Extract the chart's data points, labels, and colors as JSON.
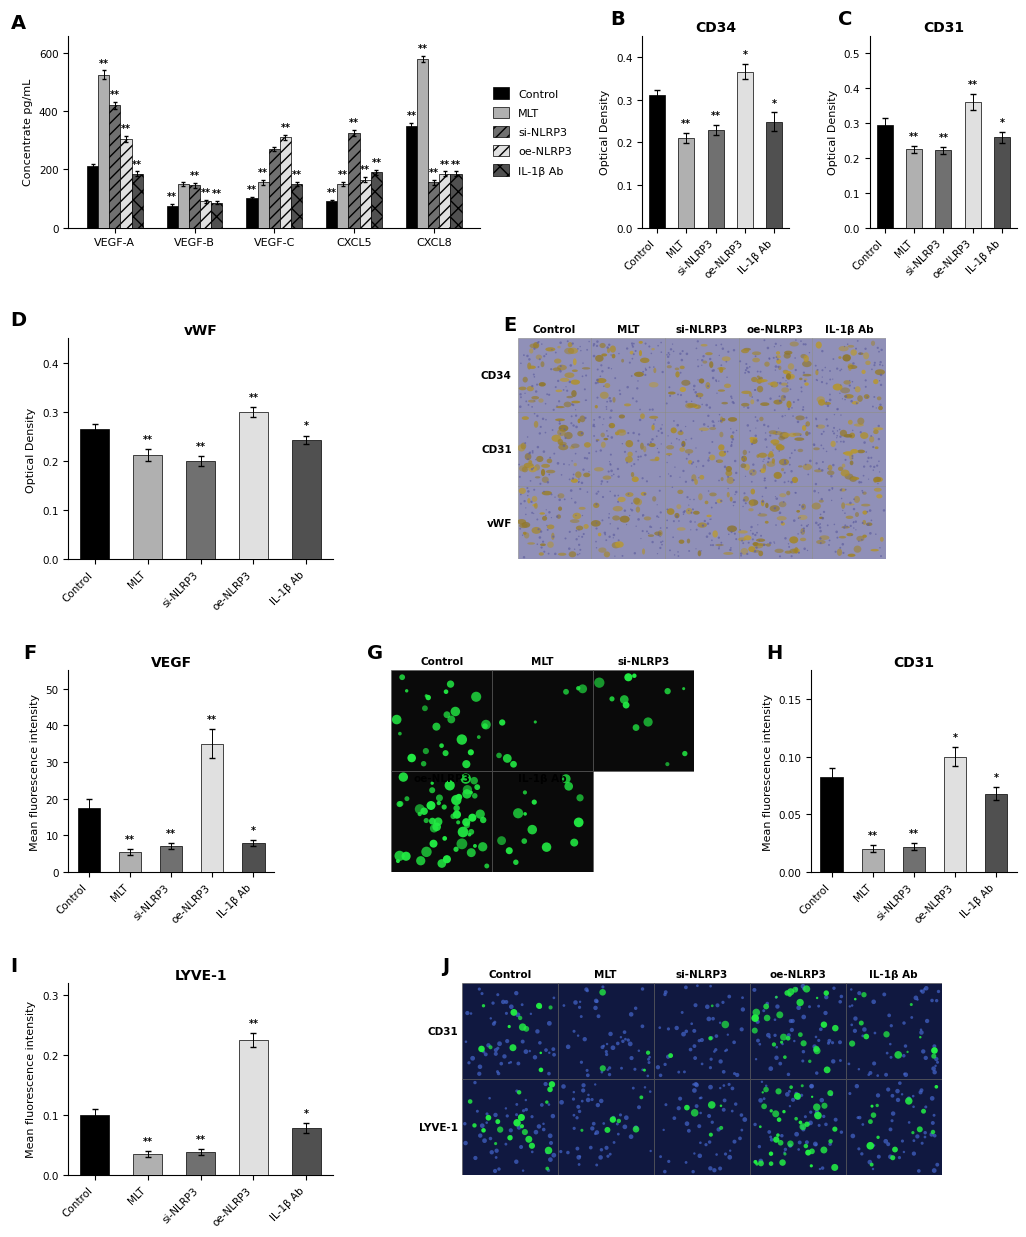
{
  "panel_A": {
    "ylabel": "Concentrate pg/mL",
    "groups": [
      "VEGF-A",
      "VEGF-B",
      "VEGF-C",
      "CXCL5",
      "CXCL8"
    ],
    "values": [
      [
        210,
        75,
        100,
        90,
        350
      ],
      [
        525,
        150,
        155,
        150,
        580
      ],
      [
        420,
        145,
        270,
        325,
        155
      ],
      [
        305,
        90,
        310,
        165,
        185
      ],
      [
        185,
        85,
        150,
        190,
        185
      ]
    ],
    "errors": [
      [
        8,
        5,
        5,
        5,
        10
      ],
      [
        15,
        8,
        8,
        8,
        10
      ],
      [
        12,
        8,
        8,
        10,
        8
      ],
      [
        10,
        5,
        8,
        8,
        8
      ],
      [
        8,
        5,
        8,
        8,
        8
      ]
    ],
    "sig_rows": [
      [
        "",
        "**",
        "**",
        "**",
        "**"
      ],
      [
        "**",
        "",
        "**",
        "**",
        "**"
      ],
      [
        "**",
        "**",
        "",
        "**",
        "**"
      ],
      [
        "**",
        "**",
        "**",
        "**",
        "**"
      ],
      [
        "**",
        "**",
        "**",
        "**",
        "**"
      ]
    ],
    "ylim": [
      0,
      660
    ],
    "yticks": [
      0,
      200,
      400,
      600
    ],
    "bar_width": 0.14,
    "colors": [
      "#000000",
      "#b0b0b0",
      "#707070",
      "#e0e0e0",
      "#505050"
    ],
    "legend_labels": [
      "Control",
      "MLT",
      "si-NLRP3",
      "oe-NLRP3",
      "IL-1β Ab"
    ],
    "legend_hatch": [
      "",
      "",
      "///",
      "///",
      "xx"
    ]
  },
  "panel_B": {
    "title": "CD34",
    "ylabel": "Optical Density",
    "categories": [
      "Control",
      "MLT",
      "si-NLRP3",
      "oe-NLRP3",
      "IL-1β Ab"
    ],
    "values": [
      0.31,
      0.21,
      0.228,
      0.365,
      0.248
    ],
    "errors": [
      0.012,
      0.012,
      0.012,
      0.018,
      0.022
    ],
    "sig": [
      "",
      "**",
      "**",
      "*",
      "*"
    ],
    "ylim": [
      0,
      0.45
    ],
    "yticks": [
      0.0,
      0.1,
      0.2,
      0.3,
      0.4
    ],
    "colors": [
      "#000000",
      "#b0b0b0",
      "#707070",
      "#e0e0e0",
      "#505050"
    ]
  },
  "panel_C": {
    "title": "CD31",
    "ylabel": "Optical Density",
    "categories": [
      "Control",
      "MLT",
      "si-NLRP3",
      "oe-NLRP3",
      "IL-1β Ab"
    ],
    "values": [
      0.295,
      0.225,
      0.222,
      0.36,
      0.258
    ],
    "errors": [
      0.018,
      0.01,
      0.01,
      0.022,
      0.015
    ],
    "sig": [
      "",
      "**",
      "**",
      "**",
      "*"
    ],
    "ylim": [
      0,
      0.55
    ],
    "yticks": [
      0.0,
      0.1,
      0.2,
      0.3,
      0.4,
      0.5
    ],
    "colors": [
      "#000000",
      "#b0b0b0",
      "#707070",
      "#e0e0e0",
      "#505050"
    ]
  },
  "panel_D": {
    "title": "vWF",
    "ylabel": "Optical Density",
    "categories": [
      "Control",
      "MLT",
      "si-NLRP3",
      "oe-NLRP3",
      "IL-1β Ab"
    ],
    "values": [
      0.265,
      0.212,
      0.2,
      0.3,
      0.244
    ],
    "errors": [
      0.01,
      0.012,
      0.01,
      0.01,
      0.008
    ],
    "sig": [
      "",
      "**",
      "**",
      "**",
      "*"
    ],
    "ylim": [
      0,
      0.45
    ],
    "yticks": [
      0.0,
      0.1,
      0.2,
      0.3,
      0.4
    ],
    "colors": [
      "#000000",
      "#b0b0b0",
      "#707070",
      "#e0e0e0",
      "#505050"
    ]
  },
  "panel_F": {
    "title": "VEGF",
    "ylabel": "Mean fluorescence intensity",
    "categories": [
      "Control",
      "MLT",
      "si-NLRP3",
      "oe-NLRP3",
      "IL-1β Ab"
    ],
    "values": [
      17.5,
      5.5,
      7.0,
      35.0,
      8.0
    ],
    "errors": [
      2.5,
      0.8,
      0.8,
      4.0,
      0.8
    ],
    "sig": [
      "",
      "**",
      "**",
      "**",
      "*"
    ],
    "ylim": [
      0,
      55
    ],
    "yticks": [
      0,
      10,
      20,
      30,
      40,
      50
    ],
    "colors": [
      "#000000",
      "#b0b0b0",
      "#707070",
      "#e0e0e0",
      "#505050"
    ]
  },
  "panel_H": {
    "title": "CD31",
    "ylabel": "Mean fluorescence intensity",
    "categories": [
      "Control",
      "MLT",
      "si-NLRP3",
      "oe-NLRP3",
      "IL-1β Ab"
    ],
    "values": [
      0.082,
      0.02,
      0.022,
      0.1,
      0.068
    ],
    "errors": [
      0.008,
      0.003,
      0.003,
      0.008,
      0.006
    ],
    "sig": [
      "",
      "**",
      "**",
      "*",
      "*"
    ],
    "ylim": [
      0,
      0.175
    ],
    "yticks": [
      0.0,
      0.05,
      0.1,
      0.15
    ],
    "colors": [
      "#000000",
      "#b0b0b0",
      "#707070",
      "#e0e0e0",
      "#505050"
    ]
  },
  "panel_I": {
    "title": "LYVE-1",
    "ylabel": "Mean fluorescence intensity",
    "categories": [
      "Control",
      "MLT",
      "si-NLRP3",
      "oe-NLRP3",
      "IL-1β Ab"
    ],
    "values": [
      0.1,
      0.035,
      0.038,
      0.225,
      0.078
    ],
    "errors": [
      0.01,
      0.005,
      0.005,
      0.012,
      0.008
    ],
    "sig": [
      "",
      "**",
      "**",
      "**",
      "*"
    ],
    "ylim": [
      0,
      0.32
    ],
    "yticks": [
      0.0,
      0.1,
      0.2,
      0.3
    ],
    "colors": [
      "#000000",
      "#b0b0b0",
      "#707070",
      "#e0e0e0",
      "#505050"
    ]
  },
  "panel_label_fontsize": 14,
  "title_fontsize": 10,
  "tick_fontsize": 7.5,
  "sig_fontsize": 7,
  "axis_label_fontsize": 8
}
